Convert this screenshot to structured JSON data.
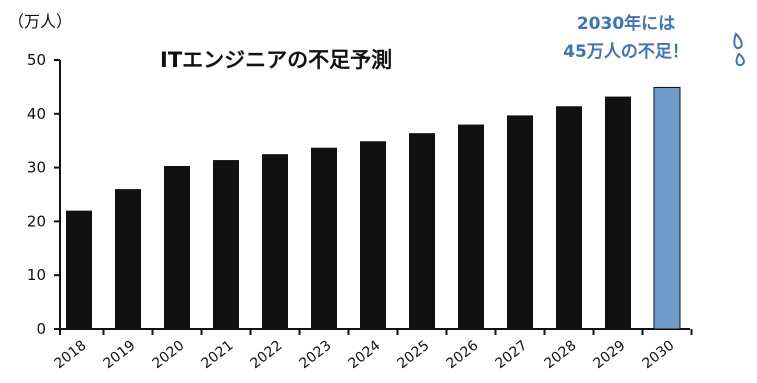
{
  "chart_data": {
    "type": "bar",
    "title": "ITエンジニアの不足予測",
    "unit_label": "（万人）",
    "categories": [
      "2018",
      "2019",
      "2020",
      "2021",
      "2022",
      "2023",
      "2024",
      "2025",
      "2026",
      "2027",
      "2028",
      "2029",
      "2030"
    ],
    "values": [
      22.0,
      26.0,
      30.3,
      31.4,
      32.5,
      33.7,
      34.9,
      36.4,
      38.0,
      39.7,
      41.4,
      43.2,
      44.9
    ],
    "ylim": [
      0,
      50
    ],
    "yticks": [
      0,
      10,
      20,
      30,
      40,
      50
    ],
    "grid": false,
    "bar_color": "#111111",
    "highlight_color": "#6f9ac9",
    "highlight_index": 12,
    "annotation": {
      "line1": "2030年には",
      "line2": "45万人の不足！",
      "color": "#3f74b3"
    }
  }
}
